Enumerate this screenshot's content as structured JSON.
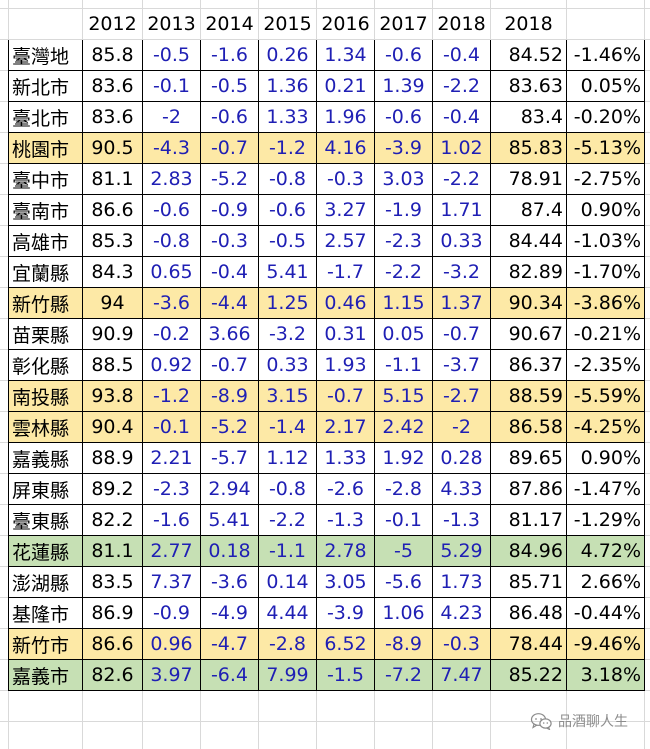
{
  "header": [
    "",
    "2012",
    "2013",
    "2014",
    "2015",
    "2016",
    "2017",
    "2018",
    "2018",
    ""
  ],
  "rows": [
    {
      "name": "臺灣地",
      "cells": [
        "85.8",
        "-0.5",
        "-1.6",
        "0.26",
        "1.34",
        "-0.6",
        "-0.4",
        "84.52",
        "-1.46%"
      ],
      "highlight": "none"
    },
    {
      "name": "新北市",
      "cells": [
        "83.6",
        "-0.1",
        "-0.5",
        "1.36",
        "0.21",
        "1.39",
        "-2.2",
        "83.63",
        "0.05%"
      ],
      "highlight": "none"
    },
    {
      "name": "臺北市",
      "cells": [
        "83.6",
        "-2",
        "-0.6",
        "1.33",
        "1.96",
        "-0.6",
        "-0.4",
        "83.4",
        "-0.20%"
      ],
      "highlight": "none"
    },
    {
      "name": "桃園市",
      "cells": [
        "90.5",
        "-4.3",
        "-0.7",
        "-1.2",
        "4.16",
        "-3.9",
        "1.02",
        "85.83",
        "-5.13%"
      ],
      "highlight": "yellow"
    },
    {
      "name": "臺中市",
      "cells": [
        "81.1",
        "2.83",
        "-5.2",
        "-0.8",
        "-0.3",
        "3.03",
        "-2.2",
        "78.91",
        "-2.75%"
      ],
      "highlight": "none"
    },
    {
      "name": "臺南市",
      "cells": [
        "86.6",
        "-0.6",
        "-0.9",
        "-0.6",
        "3.27",
        "-1.9",
        "1.71",
        "87.4",
        "0.90%"
      ],
      "highlight": "none"
    },
    {
      "name": "高雄市",
      "cells": [
        "85.3",
        "-0.8",
        "-0.3",
        "-0.5",
        "2.57",
        "-2.3",
        "0.33",
        "84.44",
        "-1.03%"
      ],
      "highlight": "none"
    },
    {
      "name": "宜蘭縣",
      "cells": [
        "84.3",
        "0.65",
        "-0.4",
        "5.41",
        "-1.7",
        "-2.2",
        "-3.2",
        "82.89",
        "-1.70%"
      ],
      "highlight": "none"
    },
    {
      "name": "新竹縣",
      "cells": [
        "94",
        "-3.6",
        "-4.4",
        "1.25",
        "0.46",
        "1.15",
        "1.37",
        "90.34",
        "-3.86%"
      ],
      "highlight": "yellow"
    },
    {
      "name": "苗栗縣",
      "cells": [
        "90.9",
        "-0.2",
        "3.66",
        "-3.2",
        "0.31",
        "0.05",
        "-0.7",
        "90.67",
        "-0.21%"
      ],
      "highlight": "none"
    },
    {
      "name": "彰化縣",
      "cells": [
        "88.5",
        "0.92",
        "-0.7",
        "0.33",
        "1.93",
        "-1.1",
        "-3.7",
        "86.37",
        "-2.35%"
      ],
      "highlight": "none"
    },
    {
      "name": "南投縣",
      "cells": [
        "93.8",
        "-1.2",
        "-8.9",
        "3.15",
        "-0.7",
        "5.15",
        "-2.7",
        "88.59",
        "-5.59%"
      ],
      "highlight": "yellow"
    },
    {
      "name": "雲林縣",
      "cells": [
        "90.4",
        "-0.1",
        "-5.2",
        "-1.4",
        "2.17",
        "2.42",
        "-2",
        "86.58",
        "-4.25%"
      ],
      "highlight": "yellow"
    },
    {
      "name": "嘉義縣",
      "cells": [
        "88.9",
        "2.21",
        "-5.7",
        "1.12",
        "1.33",
        "1.92",
        "0.28",
        "89.65",
        "0.90%"
      ],
      "highlight": "none"
    },
    {
      "name": "屏東縣",
      "cells": [
        "89.2",
        "-2.3",
        "2.94",
        "-0.8",
        "-2.6",
        "-2.8",
        "4.33",
        "87.86",
        "-1.47%"
      ],
      "highlight": "none"
    },
    {
      "name": "臺東縣",
      "cells": [
        "82.2",
        "-1.6",
        "5.41",
        "-2.2",
        "-1.3",
        "-0.1",
        "-1.3",
        "81.17",
        "-1.29%"
      ],
      "highlight": "none"
    },
    {
      "name": "花蓮縣",
      "cells": [
        "81.1",
        "2.77",
        "0.18",
        "-1.1",
        "2.78",
        "-5",
        "5.29",
        "84.96",
        "4.72%"
      ],
      "highlight": "green"
    },
    {
      "name": "澎湖縣",
      "cells": [
        "83.5",
        "7.37",
        "-3.6",
        "0.14",
        "3.05",
        "-5.6",
        "1.73",
        "85.71",
        "2.66%"
      ],
      "highlight": "none"
    },
    {
      "name": "基隆市",
      "cells": [
        "86.9",
        "-0.9",
        "-4.9",
        "4.44",
        "-3.9",
        "1.06",
        "4.23",
        "86.48",
        "-0.44%"
      ],
      "highlight": "none"
    },
    {
      "name": "新竹市",
      "cells": [
        "86.6",
        "0.96",
        "-4.7",
        "-2.8",
        "6.52",
        "-8.9",
        "-0.3",
        "78.44",
        "-9.46%"
      ],
      "highlight": "yellow"
    },
    {
      "name": "嘉義市",
      "cells": [
        "82.6",
        "3.97",
        "-6.4",
        "7.99",
        "-1.5",
        "-7.2",
        "7.47",
        "85.22",
        "3.18%"
      ],
      "highlight": "green"
    }
  ],
  "watermark": {
    "text": "品酒聊人生",
    "icon": "wechat-icon"
  },
  "colors": {
    "change_text": "#1f1fb4",
    "highlight_yellow": "#fde9a6",
    "highlight_green": "#c6e0b4",
    "grid": "#d9d9d9"
  }
}
